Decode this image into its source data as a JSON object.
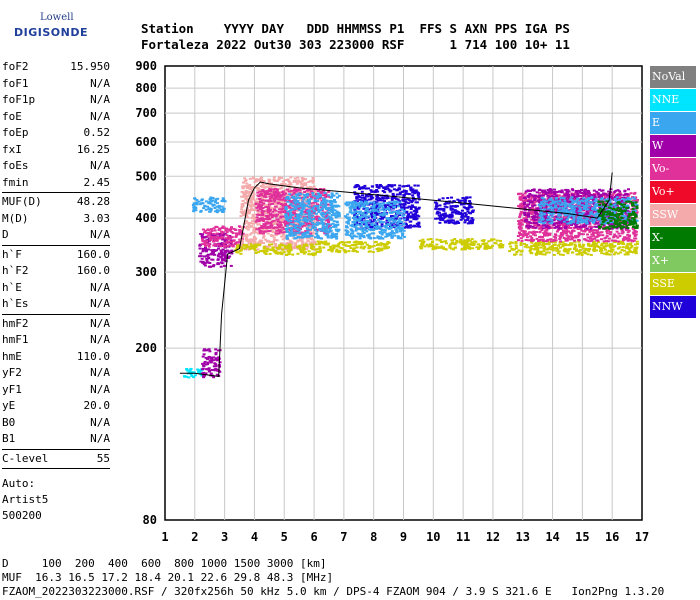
{
  "logo": {
    "line1": "Lowell",
    "line2": "DIGISONDE"
  },
  "header": {
    "labels": "Station    YYYY DAY   DDD HHMMSS P1  FFS S AXN PPS IGA PS",
    "values": "Fortaleza 2022 Out30 303 223000 RSF      1 714 100 10+ 11"
  },
  "params": {
    "group1": [
      {
        "name": "foF2",
        "value": "15.950"
      },
      {
        "name": "foF1",
        "value": "N/A"
      },
      {
        "name": "foF1p",
        "value": "N/A"
      },
      {
        "name": "foE",
        "value": "N/A"
      },
      {
        "name": "foEp",
        "value": "0.52"
      },
      {
        "name": "fxI",
        "value": "16.25"
      },
      {
        "name": "foEs",
        "value": "N/A"
      },
      {
        "name": "fmin",
        "value": "2.45"
      }
    ],
    "group2": [
      {
        "name": "MUF(D)",
        "value": "48.28"
      },
      {
        "name": "M(D)",
        "value": "3.03"
      },
      {
        "name": "D",
        "value": "N/A"
      }
    ],
    "group3": [
      {
        "name": "h`F",
        "value": "160.0"
      },
      {
        "name": "h`F2",
        "value": "160.0"
      },
      {
        "name": "h`E",
        "value": "N/A"
      },
      {
        "name": "h`Es",
        "value": "N/A"
      }
    ],
    "group4": [
      {
        "name": "hmF2",
        "value": "N/A"
      },
      {
        "name": "hmF1",
        "value": "N/A"
      },
      {
        "name": "hmE",
        "value": "110.0"
      },
      {
        "name": "yF2",
        "value": "N/A"
      },
      {
        "name": "yF1",
        "value": "N/A"
      },
      {
        "name": "yE",
        "value": "20.0"
      },
      {
        "name": "B0",
        "value": "N/A"
      },
      {
        "name": "B1",
        "value": "N/A"
      }
    ],
    "clevel": {
      "name": "C-level",
      "value": "55"
    },
    "auto": [
      "Auto:",
      "Artist5",
      "500200"
    ]
  },
  "legend": [
    {
      "label": "NoVal",
      "color": "#808080"
    },
    {
      "label": "NNE",
      "color": "#00e5ff"
    },
    {
      "label": "E",
      "color": "#3aa6f0"
    },
    {
      "label": "W",
      "color": "#a000a8"
    },
    {
      "label": "Vo-",
      "color": "#e0309a"
    },
    {
      "label": "Vo+",
      "color": "#f00a2a"
    },
    {
      "label": "SSW",
      "color": "#f4aaaa"
    },
    {
      "label": "X-",
      "color": "#007a00"
    },
    {
      "label": "X+",
      "color": "#80c860"
    },
    {
      "label": "SSE",
      "color": "#cccc00"
    },
    {
      "label": "NNW",
      "color": "#2000d8"
    }
  ],
  "footer": {
    "d_line": "D     100  200  400  600  800 1000 1500 3000 [km]",
    "muf_line": "MUF  16.3 16.5 17.2 18.4 20.1 22.6 29.8 48.3 [MHz]",
    "info_line": "FZAOM_2022303223000.RSF / 320fx256h 50 kHz 5.0 km / DPS-4 FZAOM 904 / 3.9 S 321.6 E   Ion2Png 1.3.20"
  },
  "chart_data": {
    "type": "scatter",
    "xlabel": "",
    "ylabel": "",
    "xlim": [
      1,
      17
    ],
    "ylim": [
      80,
      900
    ],
    "x_ticks": [
      1,
      2,
      3,
      4,
      5,
      6,
      7,
      8,
      9,
      10,
      11,
      12,
      13,
      14,
      15,
      16,
      17
    ],
    "y_ticks": [
      80,
      200,
      300,
      400,
      500,
      600,
      700,
      800,
      900
    ],
    "y_scale": "log",
    "grid": true,
    "trace": {
      "name": "",
      "x": [
        1.5,
        2.0,
        2.5,
        2.8,
        2.9,
        3.1,
        3.3,
        3.5,
        3.8,
        4.0,
        4.2,
        4.5,
        5.5,
        7.0,
        8.5,
        10.0,
        11.5,
        13.0,
        14.5,
        15.5,
        15.9,
        16.0
      ],
      "y": [
        175,
        175,
        173,
        172,
        240,
        330,
        335,
        340,
        440,
        470,
        485,
        480,
        470,
        460,
        450,
        440,
        430,
        420,
        410,
        400,
        440,
        510
      ]
    },
    "echo_clusters": [
      {
        "x": [
          2.1,
          3.2
        ],
        "y": [
          310,
          370
        ],
        "color": "#a000a8"
      },
      {
        "x": [
          2.2,
          3.6
        ],
        "y": [
          345,
          385
        ],
        "color": "#e0309a"
      },
      {
        "x": [
          1.9,
          3.0
        ],
        "y": [
          415,
          450
        ],
        "color": "#3aa6f0"
      },
      {
        "x": [
          3.5,
          6.0
        ],
        "y": [
          340,
          500
        ],
        "color": "#f4aaaa"
      },
      {
        "x": [
          3.3,
          6.0
        ],
        "y": [
          330,
          350
        ],
        "color": "#cccc00"
      },
      {
        "x": [
          4.0,
          6.5
        ],
        "y": [
          370,
          470
        ],
        "color": "#e0309a"
      },
      {
        "x": [
          5.0,
          6.8
        ],
        "y": [
          360,
          460
        ],
        "color": "#3aa6f0"
      },
      {
        "x": [
          6.0,
          8.5
        ],
        "y": [
          335,
          355
        ],
        "color": "#cccc00"
      },
      {
        "x": [
          7.3,
          9.5
        ],
        "y": [
          380,
          480
        ],
        "color": "#2000d8"
      },
      {
        "x": [
          7.0,
          9.0
        ],
        "y": [
          360,
          440
        ],
        "color": "#3aa6f0"
      },
      {
        "x": [
          9.5,
          11.2
        ],
        "y": [
          340,
          360
        ],
        "color": "#cccc00"
      },
      {
        "x": [
          10.0,
          11.3
        ],
        "y": [
          390,
          450
        ],
        "color": "#2000d8"
      },
      {
        "x": [
          11.0,
          12.3
        ],
        "y": [
          340,
          360
        ],
        "color": "#cccc00"
      },
      {
        "x": [
          12.5,
          16.8
        ],
        "y": [
          330,
          355
        ],
        "color": "#cccc00"
      },
      {
        "x": [
          12.8,
          16.8
        ],
        "y": [
          355,
          460
        ],
        "color": "#e0309a"
      },
      {
        "x": [
          13.0,
          16.5
        ],
        "y": [
          380,
          470
        ],
        "color": "#a000a8"
      },
      {
        "x": [
          13.5,
          16.8
        ],
        "y": [
          390,
          450
        ],
        "color": "#3aa6f0"
      },
      {
        "x": [
          15.5,
          16.8
        ],
        "y": [
          380,
          440
        ],
        "color": "#007a00"
      },
      {
        "x": [
          1.6,
          2.2
        ],
        "y": [
          172,
          180
        ],
        "color": "#00e5ff"
      },
      {
        "x": [
          2.2,
          2.8
        ],
        "y": [
          172,
          200
        ],
        "color": "#a000a8"
      }
    ]
  }
}
